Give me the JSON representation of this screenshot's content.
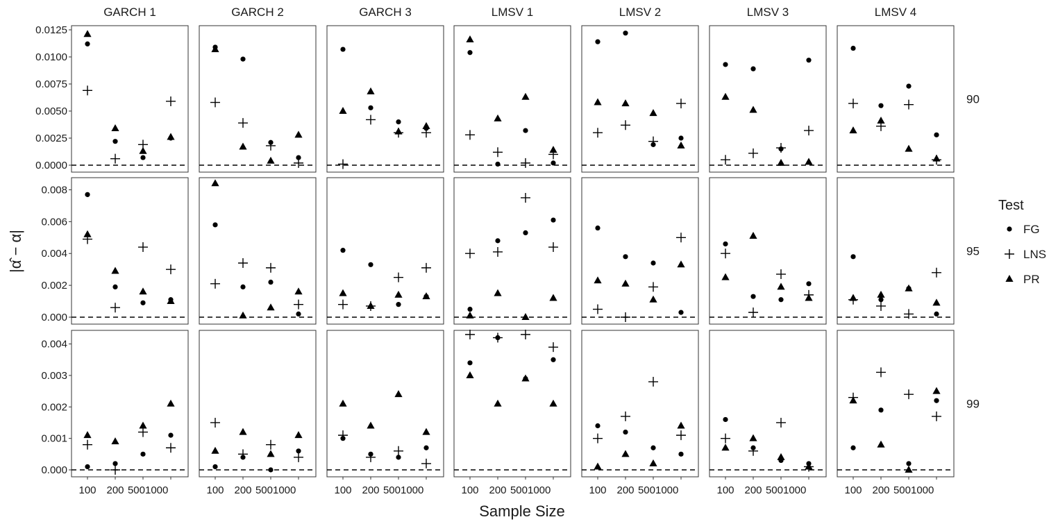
{
  "chart_data": {
    "type": "scatter",
    "xlabel": "Sample Size",
    "ylabel": "|α̂ − α|",
    "x_categories": [
      "100",
      "200",
      "500",
      "1000"
    ],
    "columns": [
      "GARCH 1",
      "GARCH 2",
      "GARCH 3",
      "LMSV 1",
      "LMSV 2",
      "LMSV 3",
      "LMSV 4"
    ],
    "rows": [
      {
        "label": "90",
        "ylim": [
          0,
          0.0125
        ],
        "ticks": [
          "0.0000",
          "0.0025",
          "0.0050",
          "0.0075",
          "0.0100",
          "0.0125"
        ],
        "tick_values": [
          0,
          0.0025,
          0.005,
          0.0075,
          0.01,
          0.0125
        ]
      },
      {
        "label": "95",
        "ylim": [
          0,
          0.0085
        ],
        "ticks": [
          "0.000",
          "0.002",
          "0.004",
          "0.006",
          "0.008"
        ],
        "tick_values": [
          0,
          0.002,
          0.004,
          0.006,
          0.008
        ]
      },
      {
        "label": "99",
        "ylim": [
          0,
          0.0043
        ],
        "ticks": [
          "0.000",
          "0.001",
          "0.002",
          "0.003",
          "0.004"
        ],
        "tick_values": [
          0,
          0.001,
          0.002,
          0.003,
          0.004
        ]
      }
    ],
    "legend": {
      "title": "Test",
      "placement": "right",
      "entries": [
        {
          "name": "FG",
          "marker": "circle"
        },
        {
          "name": "LNS",
          "marker": "plus"
        },
        {
          "name": "PR",
          "marker": "triangle"
        }
      ]
    },
    "reference_line": {
      "y": 0,
      "style": "dashed"
    },
    "grid": false,
    "series": {
      "FG": [
        [
          [
            0.0112,
            0.0022,
            0.0007,
            0.0025
          ],
          [
            0.0109,
            0.0098,
            0.0021,
            0.0007
          ],
          [
            0.0107,
            0.0053,
            0.004,
            0.0034
          ],
          [
            0.0104,
            0.0001,
            0.0032,
            0.0002
          ],
          [
            0.0114,
            0.0122,
            0.0019,
            0.0025
          ],
          [
            0.0093,
            0.0089,
            0.0015,
            0.0097
          ],
          [
            0.0108,
            0.0055,
            0.0073,
            0.0028
          ]
        ],
        [
          [
            0.0077,
            0.0019,
            0.0009,
            0.0011
          ],
          [
            0.0058,
            0.0019,
            0.0022,
            0.0002
          ],
          [
            0.0042,
            0.0033,
            0.0008,
            0.0013
          ],
          [
            0.0005,
            0.0048,
            0.0053,
            0.0061
          ],
          [
            0.0056,
            0.0038,
            0.0034,
            0.0003
          ],
          [
            0.0046,
            0.0013,
            0.0011,
            0.0021
          ],
          [
            0.0038,
            0.0011,
            0.0018,
            0.0002
          ]
        ],
        [
          [
            0.0001,
            0.0002,
            0.0005,
            0.0011
          ],
          [
            0.0001,
            0.0004,
            0.0,
            0.0006
          ],
          [
            0.001,
            0.0005,
            0.0004,
            0.0007
          ],
          [
            0.0034,
            0.0042,
            0.0029,
            0.0035
          ],
          [
            0.0014,
            0.0012,
            0.0007,
            0.0005
          ],
          [
            0.0016,
            0.0007,
            0.0003,
            0.0002
          ],
          [
            0.0007,
            0.0019,
            0.0002,
            0.0022
          ]
        ]
      ],
      "LNS": [
        [
          [
            0.0069,
            0.0006,
            0.0019,
            0.0059
          ],
          [
            0.0058,
            0.0039,
            0.0018,
            0.0002
          ],
          [
            0.0001,
            0.0042,
            0.003,
            0.003
          ],
          [
            0.0028,
            0.0012,
            0.0002,
            0.001
          ],
          [
            0.003,
            0.0037,
            0.0022,
            0.0057
          ],
          [
            0.0005,
            0.0011,
            0.0016,
            0.0032
          ],
          [
            0.0057,
            0.0036,
            0.0056,
            0.0005
          ]
        ],
        [
          [
            0.0049,
            0.0006,
            0.0044,
            0.003
          ],
          [
            0.0021,
            0.0034,
            0.0031,
            0.0008
          ],
          [
            0.0008,
            0.0007,
            0.0025,
            0.0031
          ],
          [
            0.004,
            0.0041,
            0.0075,
            0.0044
          ],
          [
            0.0005,
            0.0,
            0.0019,
            0.005
          ],
          [
            0.004,
            0.0003,
            0.0027,
            0.0014
          ],
          [
            0.0011,
            0.0007,
            0.0002,
            0.0028
          ]
        ],
        [
          [
            0.0008,
            0.0,
            0.0012,
            0.0007
          ],
          [
            0.0015,
            0.0005,
            0.0008,
            0.0004
          ],
          [
            0.0011,
            0.0004,
            0.0006,
            0.0002
          ],
          [
            0.0043,
            0.0042,
            0.0043,
            0.0039
          ],
          [
            0.001,
            0.0017,
            0.0028,
            0.0011
          ],
          [
            0.001,
            0.0006,
            0.0015,
            0.0001
          ],
          [
            0.0023,
            0.0031,
            0.0024,
            0.0017
          ]
        ]
      ],
      "PR": [
        [
          [
            0.0121,
            0.0034,
            0.0013,
            0.0026
          ],
          [
            0.0107,
            0.0017,
            0.0004,
            0.0028
          ],
          [
            0.005,
            0.0068,
            0.0031,
            0.0036
          ],
          [
            0.0116,
            0.0043,
            0.0063,
            0.0014
          ],
          [
            0.0058,
            0.0057,
            0.0048,
            0.0018
          ],
          [
            0.0063,
            0.0051,
            0.0002,
            0.0003
          ],
          [
            0.0032,
            0.0041,
            0.0015,
            0.0006
          ]
        ],
        [
          [
            0.0052,
            0.0029,
            0.0016,
            0.001
          ],
          [
            0.0084,
            0.0001,
            0.0006,
            0.0016
          ],
          [
            0.0015,
            0.0007,
            0.0014,
            0.0013
          ],
          [
            0.0001,
            0.0015,
            0.0,
            0.0012
          ],
          [
            0.0023,
            0.0021,
            0.0011,
            0.0033
          ],
          [
            0.0025,
            0.0051,
            0.0019,
            0.0012
          ],
          [
            0.0012,
            0.0014,
            0.0018,
            0.0009
          ]
        ],
        [
          [
            0.0011,
            0.0009,
            0.0014,
            0.0021
          ],
          [
            0.0006,
            0.0012,
            0.0005,
            0.0011
          ],
          [
            0.0021,
            0.0014,
            0.0024,
            0.0012
          ],
          [
            0.003,
            0.0021,
            0.0029,
            0.0021
          ],
          [
            0.0001,
            0.0005,
            0.0002,
            0.0014
          ],
          [
            0.0007,
            0.001,
            0.0004,
            0.0001
          ],
          [
            0.0022,
            0.0008,
            0.0,
            0.0025
          ]
        ]
      ]
    }
  }
}
